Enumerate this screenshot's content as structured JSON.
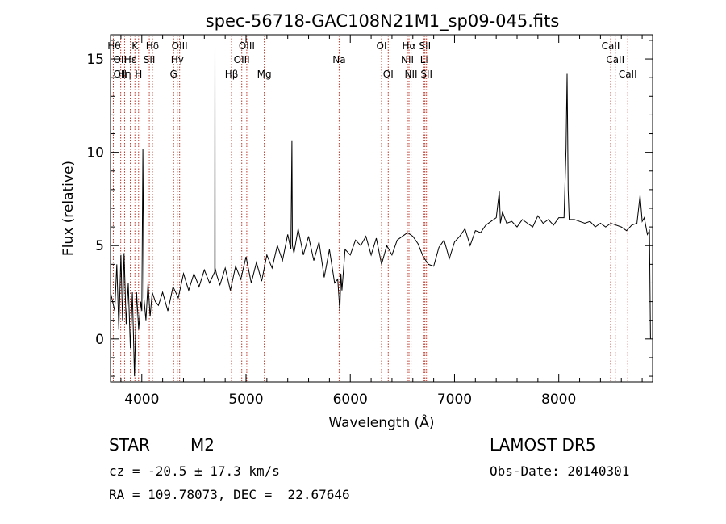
{
  "chart_data": {
    "type": "line",
    "title": "spec-56718-GAC108N21M1_sp09-045.fits",
    "xlabel": "Wavelength (Å)",
    "ylabel": "Flux (relative)",
    "xlim": [
      3700,
      8900
    ],
    "ylim": [
      -2.3,
      16.3
    ],
    "xticks": [
      4000,
      5000,
      6000,
      7000,
      8000
    ],
    "yticks": [
      0,
      5,
      10,
      15
    ],
    "grid": false,
    "spectrum_color": "#000000",
    "line_color": "#c0392b",
    "spectrum": {
      "x": [
        3700,
        3740,
        3760,
        3780,
        3800,
        3815,
        3830,
        3850,
        3870,
        3890,
        3910,
        3930,
        3950,
        3970,
        3990,
        4000,
        4010,
        4020,
        4040,
        4060,
        4080,
        4100,
        4130,
        4160,
        4200,
        4250,
        4300,
        4350,
        4400,
        4450,
        4500,
        4550,
        4600,
        4650,
        4700,
        4702,
        4704,
        4720,
        4750,
        4800,
        4850,
        4900,
        4950,
        5000,
        5050,
        5100,
        5150,
        5200,
        5250,
        5300,
        5350,
        5400,
        5430,
        5440,
        5445,
        5460,
        5500,
        5550,
        5600,
        5650,
        5700,
        5750,
        5800,
        5850,
        5880,
        5900,
        5910,
        5920,
        5950,
        6000,
        6050,
        6100,
        6150,
        6200,
        6250,
        6300,
        6350,
        6400,
        6450,
        6500,
        6550,
        6600,
        6650,
        6700,
        6750,
        6800,
        6850,
        6900,
        6950,
        7000,
        7050,
        7100,
        7150,
        7200,
        7250,
        7300,
        7350,
        7400,
        7430,
        7440,
        7460,
        7500,
        7550,
        7600,
        7650,
        7700,
        7750,
        7800,
        7850,
        7900,
        7950,
        8000,
        8050,
        8070,
        8080,
        8085,
        8090,
        8100,
        8150,
        8200,
        8250,
        8300,
        8350,
        8400,
        8450,
        8500,
        8550,
        8600,
        8650,
        8700,
        8750,
        8780,
        8800,
        8820,
        8850,
        8870,
        8880
      ],
      "y": [
        2.5,
        1.5,
        4.0,
        0.5,
        4.5,
        1.0,
        4.6,
        0.8,
        3.0,
        -0.5,
        2.5,
        -2.0,
        2.5,
        0.5,
        2.0,
        1.5,
        10.2,
        2.2,
        1.0,
        3.0,
        1.2,
        2.5,
        2.0,
        1.8,
        2.5,
        1.5,
        2.8,
        2.2,
        3.5,
        2.6,
        3.5,
        2.8,
        3.7,
        3.0,
        3.6,
        15.6,
        3.8,
        3.4,
        2.9,
        3.8,
        2.6,
        3.9,
        3.2,
        4.4,
        3.0,
        4.1,
        3.1,
        4.5,
        3.8,
        5.0,
        4.2,
        5.6,
        4.8,
        10.6,
        5.0,
        4.6,
        5.9,
        4.5,
        5.5,
        4.2,
        5.2,
        3.3,
        4.8,
        3.0,
        3.2,
        1.5,
        3.5,
        2.6,
        4.8,
        4.5,
        5.3,
        5.0,
        5.5,
        4.5,
        5.4,
        4.0,
        5.0,
        4.5,
        5.3,
        5.5,
        5.7,
        5.5,
        5.1,
        4.4,
        4.0,
        3.9,
        4.9,
        5.3,
        4.3,
        5.2,
        5.5,
        5.9,
        5.0,
        5.8,
        5.7,
        6.1,
        6.3,
        6.5,
        7.9,
        6.2,
        6.8,
        6.2,
        6.3,
        6.0,
        6.4,
        6.2,
        6.0,
        6.6,
        6.2,
        6.4,
        6.1,
        6.5,
        6.5,
        10.2,
        14.2,
        11.0,
        8.0,
        6.4,
        6.4,
        6.3,
        6.2,
        6.3,
        6.0,
        6.2,
        6.0,
        6.2,
        6.1,
        6.0,
        5.8,
        6.1,
        6.2,
        7.7,
        6.3,
        6.5,
        5.6,
        5.8,
        0.0
      ]
    },
    "lines": [
      {
        "name": "Hθ",
        "x": 3798,
        "row": 0,
        "align": "end"
      },
      {
        "name": "OII",
        "x": 3727,
        "row": 1,
        "align": "start"
      },
      {
        "name": "OII",
        "x": 3727,
        "row": 2,
        "align": "start"
      },
      {
        "name": "Hη",
        "x": 3835,
        "row": 2,
        "align": "middle"
      },
      {
        "name": "Hε",
        "x": 3890,
        "row": 1,
        "align": "middle"
      },
      {
        "name": "K",
        "x": 3934,
        "row": 0,
        "align": "middle"
      },
      {
        "name": "H",
        "x": 3969,
        "row": 2,
        "align": "middle"
      },
      {
        "name": "SII",
        "x": 4072,
        "row": 1,
        "align": "middle"
      },
      {
        "name": "Hδ",
        "x": 4102,
        "row": 0,
        "align": "middle"
      },
      {
        "name": "OIII",
        "x": 4363,
        "row": 0,
        "align": "middle"
      },
      {
        "name": "Hγ",
        "x": 4341,
        "row": 1,
        "align": "middle"
      },
      {
        "name": "G",
        "x": 4305,
        "row": 2,
        "align": "middle"
      },
      {
        "name": "Hβ",
        "x": 4861,
        "row": 2,
        "align": "middle"
      },
      {
        "name": "OIII",
        "x": 4959,
        "row": 1,
        "align": "middle"
      },
      {
        "name": "OIII",
        "x": 5007,
        "row": 0,
        "align": "middle"
      },
      {
        "name": "Mg",
        "x": 5175,
        "row": 2,
        "align": "middle"
      },
      {
        "name": "Na",
        "x": 5893,
        "row": 1,
        "align": "middle"
      },
      {
        "name": "OI",
        "x": 6300,
        "row": 0,
        "align": "middle"
      },
      {
        "name": "OI",
        "x": 6364,
        "row": 2,
        "align": "middle"
      },
      {
        "name": "NII",
        "x": 6548,
        "row": 1,
        "align": "middle"
      },
      {
        "name": "Hα",
        "x": 6563,
        "row": 0,
        "align": "middle"
      },
      {
        "name": "NII",
        "x": 6583,
        "row": 2,
        "align": "middle"
      },
      {
        "name": "SII",
        "x": 6716,
        "row": 0,
        "align": "middle"
      },
      {
        "name": "Li",
        "x": 6708,
        "row": 1,
        "align": "middle"
      },
      {
        "name": "SII",
        "x": 6731,
        "row": 2,
        "align": "middle"
      },
      {
        "name": "CaII",
        "x": 8498,
        "row": 0,
        "align": "middle"
      },
      {
        "name": "CaII",
        "x": 8542,
        "row": 1,
        "align": "middle"
      },
      {
        "name": "CaII",
        "x": 8662,
        "row": 2,
        "align": "middle"
      }
    ]
  },
  "footer": {
    "object_class": "STAR",
    "subclass": "M2",
    "survey": "LAMOST DR5",
    "cz": "cz = -20.5 ± 17.3 km/s",
    "obs_date": "Obs-Date: 20140301",
    "coords": "RA = 109.78073, DEC =  22.67646"
  }
}
